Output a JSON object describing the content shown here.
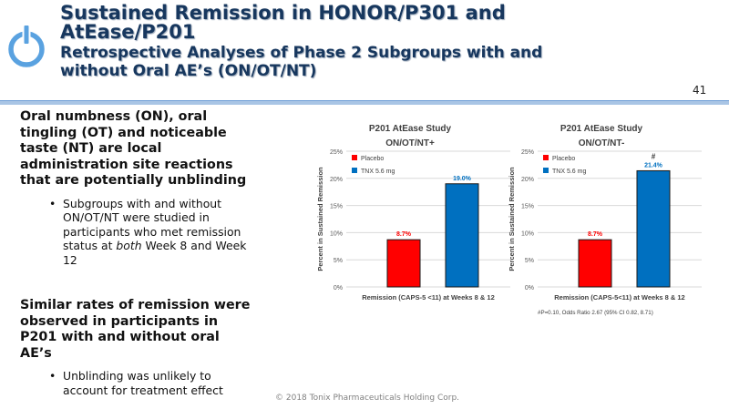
{
  "header": {
    "title_line1": "Sustained Remission in HONOR/P301 and",
    "title_line2": "AtEase/P201",
    "subtitle_line1": "Retrospective Analyses of Phase 2 Subgroups with and",
    "subtitle_line2": "without Oral AE’s (ON/OT/NT)"
  },
  "page_number": "41",
  "content": {
    "block1": {
      "heading": [
        "Oral numbness (ON), oral",
        "tingling (OT) and noticeable",
        "taste (NT) are local",
        "administration site reactions",
        "that are potentially unblinding"
      ],
      "bullet": {
        "marker": "•",
        "line1": "Subgroups with and without",
        "line2": "ON/OT/NT were studied in",
        "line3": "participants who met remission",
        "line4_pre": "status at ",
        "line4_em": "both",
        "line4_post": " Week 8 and Week",
        "line5": "12"
      }
    },
    "block2": {
      "heading": [
        "Similar rates of remission were",
        "observed in participants in",
        "P201 with and without oral",
        "AE’s"
      ],
      "bullet": {
        "marker": "•",
        "line1": "Unblinding was unlikely to",
        "line2": "account for treatment effect"
      }
    }
  },
  "colors": {
    "title": "#17375e",
    "placebo": "#ff0000",
    "tnx": "#0070c0",
    "rule": "#a9c5e5"
  },
  "logo_icon": "power-button-icon",
  "chart_data": [
    {
      "type": "bar",
      "title": "P201 AtEase Study",
      "subtitle": "ON/OT/NT+",
      "xlabel": "Remission (CAPS-5 <11) at Weeks 8 & 12",
      "ylabel": "Percent in Sustained Remission",
      "ylim": [
        0,
        25
      ],
      "yticks": [
        "0%",
        "5%",
        "10%",
        "15%",
        "20%",
        "25%"
      ],
      "grid": true,
      "legend_position": "top-left",
      "series": [
        {
          "name": "Placebo",
          "value": 8.7,
          "label": "8.7%",
          "color": "#ff0000"
        },
        {
          "name": "TNX 5.6 mg",
          "value": 19.0,
          "label": "19.0%",
          "color": "#0070c0"
        }
      ]
    },
    {
      "type": "bar",
      "title": "P201 AtEase Study",
      "subtitle": "ON/OT/NT-",
      "xlabel": "Remission (CAPS-5<11) at Weeks 8 & 12",
      "ylabel": "Percent in Sustained Remission",
      "ylim": [
        0,
        25
      ],
      "yticks": [
        "0%",
        "5%",
        "10%",
        "15%",
        "20%",
        "25%"
      ],
      "grid": true,
      "legend_position": "top-left",
      "series": [
        {
          "name": "Placebo",
          "value": 8.7,
          "label": "8.7%",
          "color": "#ff0000"
        },
        {
          "name": "TNX 5.6 mg",
          "value": 21.4,
          "label": "21.4%",
          "color": "#0070c0",
          "marker": "#"
        }
      ],
      "footnote": "#P=0.10, Odds Ratio 2.67 (95% CI 0.82, 8.71)"
    }
  ],
  "footer": "© 2018 Tonix Pharmaceuticals Holding Corp."
}
